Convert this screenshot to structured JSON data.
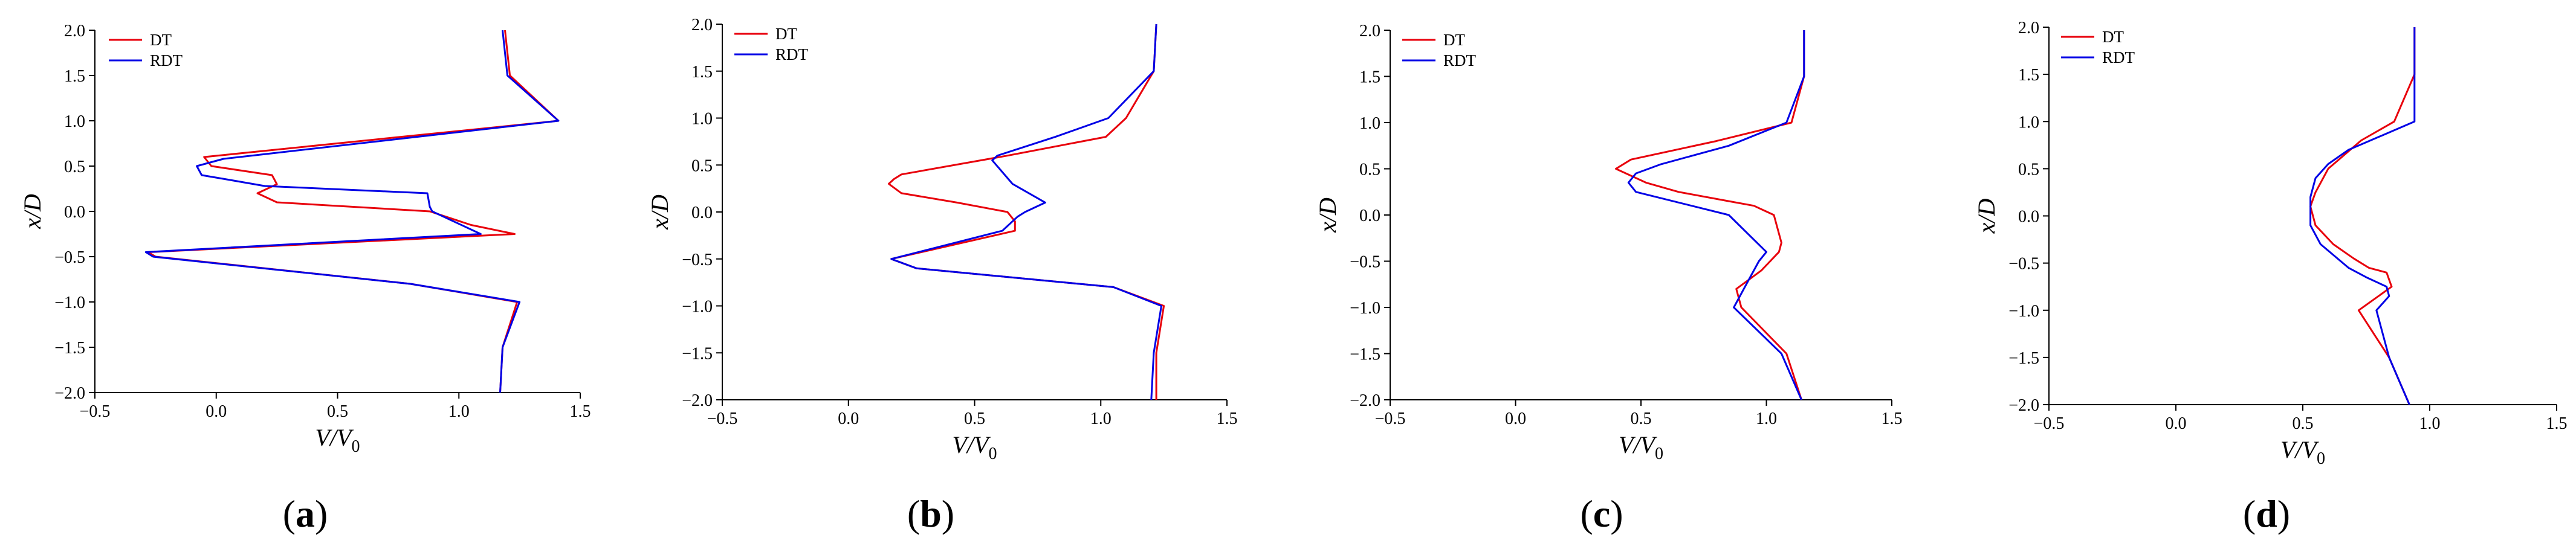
{
  "chart_data": [
    {
      "type": "line",
      "panel_label": "a",
      "xlabel": "V/V0",
      "ylabel": "x/D",
      "xlim": [
        -0.5,
        1.5
      ],
      "ylim": [
        -2.0,
        2.0
      ],
      "xticks": [
        "−0.5",
        "0.0",
        "0.5",
        "1.0",
        "1.5"
      ],
      "yticks": [
        "−2.0",
        "−1.5",
        "−1.0",
        "−0.5",
        "0.0",
        "0.5",
        "1.0",
        "1.5",
        "2.0"
      ],
      "legend_position": "top-left",
      "series": [
        {
          "name": "DT",
          "color": "#e8000b",
          "x": [
            1.19,
            1.21,
            1.41,
            -0.05,
            -0.02,
            0.23,
            0.25,
            0.17,
            0.25,
            0.88,
            1.05,
            1.23,
            -0.28,
            -0.25,
            0.8,
            1.24,
            1.18,
            1.17
          ],
          "y": [
            2.0,
            1.5,
            1.0,
            0.6,
            0.5,
            0.4,
            0.3,
            0.2,
            0.1,
            0.0,
            -0.15,
            -0.25,
            -0.45,
            -0.5,
            -0.8,
            -1.0,
            -1.5,
            -2.0
          ]
        },
        {
          "name": "RDT",
          "color": "#0000e6",
          "x": [
            1.18,
            1.2,
            1.41,
            0.03,
            -0.08,
            -0.06,
            0.05,
            0.2,
            0.87,
            0.88,
            0.89,
            1.09,
            -0.29,
            -0.26,
            0.8,
            1.25,
            1.18,
            1.17
          ],
          "y": [
            2.0,
            1.5,
            1.0,
            0.58,
            0.5,
            0.4,
            0.35,
            0.28,
            0.2,
            0.05,
            0.0,
            -0.25,
            -0.45,
            -0.5,
            -0.8,
            -1.0,
            -1.5,
            -2.0
          ]
        }
      ]
    },
    {
      "type": "line",
      "panel_label": "b",
      "xlabel": "V/V0",
      "ylabel": "x/D",
      "xlim": [
        -0.5,
        1.5
      ],
      "ylim": [
        -2.0,
        2.0
      ],
      "xticks": [
        "−0.5",
        "0.0",
        "0.5",
        "1.0",
        "1.5"
      ],
      "yticks": [
        "−2.0",
        "−1.5",
        "−1.0",
        "−0.5",
        "0.0",
        "0.5",
        "1.0",
        "1.5",
        "2.0"
      ],
      "legend_position": "top-left",
      "series": [
        {
          "name": "DT",
          "color": "#e8000b",
          "x": [
            1.22,
            1.21,
            1.1,
            1.02,
            0.63,
            0.21,
            0.18,
            0.16,
            0.21,
            0.43,
            0.63,
            0.66,
            0.66,
            0.17,
            0.27,
            1.05,
            1.25,
            1.22,
            1.22
          ],
          "y": [
            2.0,
            1.5,
            1.0,
            0.8,
            0.6,
            0.4,
            0.35,
            0.3,
            0.2,
            0.1,
            0.0,
            -0.1,
            -0.2,
            -0.5,
            -0.6,
            -0.8,
            -1.0,
            -1.5,
            -2.0
          ]
        },
        {
          "name": "RDT",
          "color": "#0000e6",
          "x": [
            1.22,
            1.21,
            1.03,
            0.82,
            0.59,
            0.57,
            0.65,
            0.78,
            0.7,
            0.67,
            0.61,
            0.17,
            0.27,
            1.05,
            1.24,
            1.21,
            1.2
          ],
          "y": [
            2.0,
            1.5,
            1.0,
            0.8,
            0.6,
            0.55,
            0.3,
            0.1,
            0.0,
            -0.05,
            -0.2,
            -0.5,
            -0.6,
            -0.8,
            -1.0,
            -1.5,
            -2.0
          ]
        }
      ]
    },
    {
      "type": "line",
      "panel_label": "c",
      "xlabel": "V/V0",
      "ylabel": "x/D",
      "xlim": [
        -0.5,
        1.5
      ],
      "ylim": [
        -2.0,
        2.0
      ],
      "xticks": [
        "−0.5",
        "0.0",
        "0.5",
        "1.0",
        "1.5"
      ],
      "yticks": [
        "−2.0",
        "−1.5",
        "−1.0",
        "−0.5",
        "0.0",
        "0.5",
        "1.0",
        "1.5",
        "2.0"
      ],
      "legend_position": "top-left",
      "series": [
        {
          "name": "DT",
          "color": "#e8000b",
          "x": [
            1.15,
            1.15,
            1.1,
            0.8,
            0.46,
            0.4,
            0.52,
            0.65,
            0.85,
            0.95,
            1.03,
            1.06,
            1.05,
            0.98,
            0.88,
            0.9,
            1.08,
            1.14
          ],
          "y": [
            2.0,
            1.5,
            1.0,
            0.8,
            0.6,
            0.5,
            0.35,
            0.25,
            0.15,
            0.1,
            0.0,
            -0.3,
            -0.4,
            -0.6,
            -0.8,
            -1.0,
            -1.5,
            -2.0
          ]
        },
        {
          "name": "RDT",
          "color": "#0000e6",
          "x": [
            1.15,
            1.15,
            1.08,
            0.85,
            0.58,
            0.48,
            0.45,
            0.48,
            0.85,
            1.0,
            0.97,
            0.93,
            0.87,
            1.06,
            1.14
          ],
          "y": [
            2.0,
            1.5,
            1.0,
            0.75,
            0.55,
            0.45,
            0.35,
            0.25,
            0.0,
            -0.4,
            -0.5,
            -0.7,
            -1.0,
            -1.5,
            -2.0
          ]
        }
      ]
    },
    {
      "type": "line",
      "panel_label": "d",
      "xlabel": "V/V0",
      "ylabel": "x/D",
      "xlim": [
        -0.5,
        1.5
      ],
      "ylim": [
        -2.0,
        2.0
      ],
      "xticks": [
        "−0.5",
        "0.0",
        "0.5",
        "1.0",
        "1.5"
      ],
      "yticks": [
        "−2.0",
        "−1.5",
        "−1.0",
        "−0.5",
        "0.0",
        "0.5",
        "1.0",
        "1.5",
        "2.0"
      ],
      "legend_position": "top-left",
      "series": [
        {
          "name": "DT",
          "color": "#e8000b",
          "x": [
            0.94,
            0.94,
            0.86,
            0.73,
            0.6,
            0.55,
            0.53,
            0.55,
            0.62,
            0.7,
            0.76,
            0.83,
            0.85,
            0.72,
            0.84,
            0.92
          ],
          "y": [
            2.0,
            1.5,
            1.0,
            0.8,
            0.5,
            0.25,
            0.1,
            -0.1,
            -0.3,
            -0.45,
            -0.55,
            -0.6,
            -0.75,
            -1.0,
            -1.5,
            -2.0
          ]
        },
        {
          "name": "RDT",
          "color": "#0000e6",
          "x": [
            0.94,
            0.94,
            0.94,
            0.68,
            0.6,
            0.55,
            0.53,
            0.53,
            0.57,
            0.68,
            0.75,
            0.83,
            0.84,
            0.79,
            0.84,
            0.92
          ],
          "y": [
            2.0,
            1.5,
            1.0,
            0.7,
            0.55,
            0.4,
            0.2,
            -0.1,
            -0.3,
            -0.55,
            -0.65,
            -0.75,
            -0.85,
            -1.0,
            -1.5,
            -2.0
          ]
        }
      ]
    }
  ]
}
